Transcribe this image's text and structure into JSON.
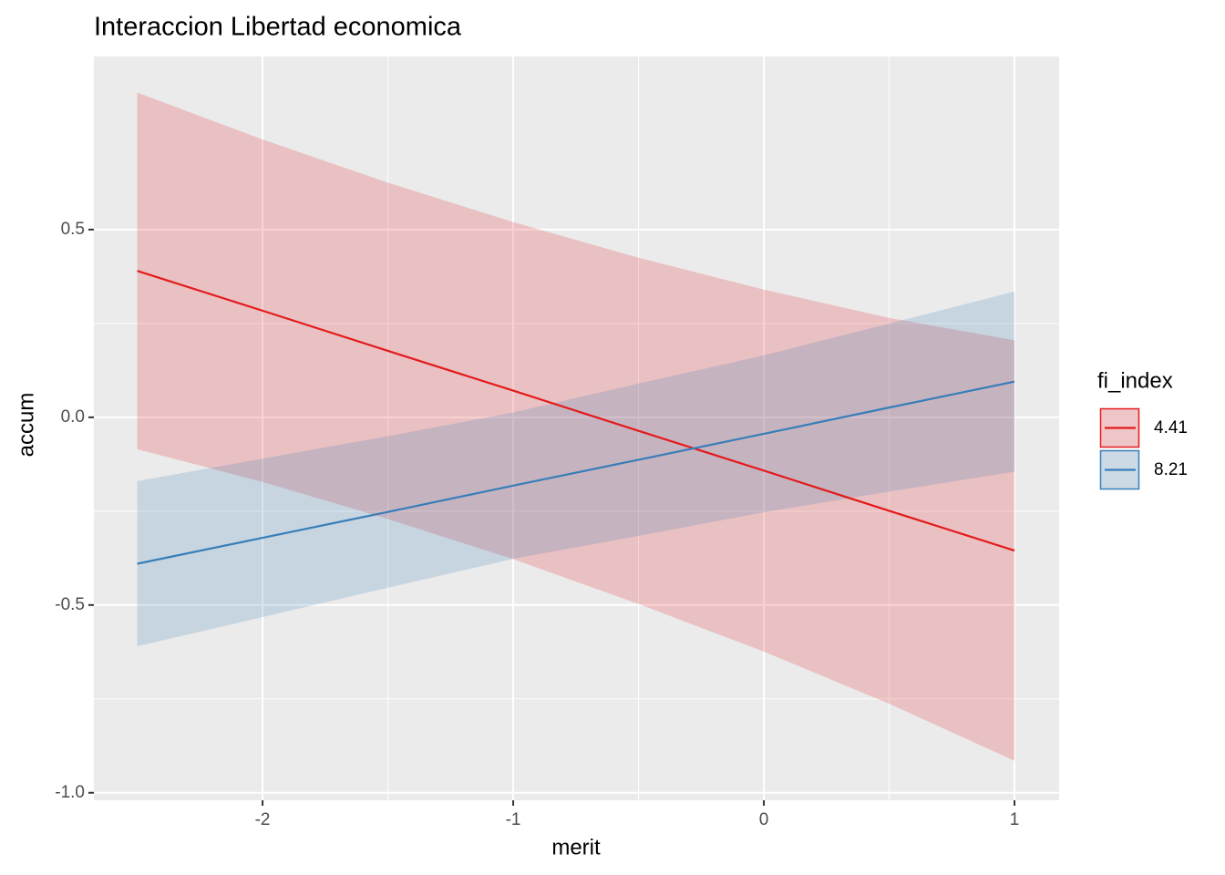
{
  "chart_data": {
    "type": "line",
    "title": "Interaccion Libertad economica",
    "x_label": "merit",
    "y_label": "accum",
    "legend_title": "fi_index",
    "legend": "right",
    "grid": true,
    "x": [
      -2.5,
      -2,
      -1.5,
      -1,
      -0.5,
      0,
      0.5,
      1
    ],
    "series": [
      {
        "name": "4.41",
        "color": "#e41a1c",
        "values": [
          0.39,
          0.284,
          0.177,
          0.071,
          -0.036,
          -0.142,
          -0.249,
          -0.355
        ],
        "upper": [
          0.865,
          0.74,
          0.625,
          0.52,
          0.425,
          0.34,
          0.265,
          0.205
        ],
        "lower": [
          -0.085,
          -0.172,
          -0.271,
          -0.378,
          -0.497,
          -0.624,
          -0.763,
          -0.915
        ]
      },
      {
        "name": "8.21",
        "color": "#377eb8",
        "values": [
          -0.39,
          -0.321,
          -0.252,
          -0.182,
          -0.113,
          -0.044,
          0.026,
          0.095
        ],
        "upper": [
          -0.17,
          -0.11,
          -0.05,
          0.013,
          0.09,
          0.165,
          0.25,
          0.335
        ],
        "lower": [
          -0.61,
          -0.532,
          -0.454,
          -0.377,
          -0.316,
          -0.253,
          -0.198,
          -0.145
        ]
      }
    ],
    "xlim": [
      -2.673,
      1.178
    ],
    "xticks": [
      -2,
      -1,
      0,
      1
    ],
    "ylim": [
      -1.02,
      0.961
    ],
    "yticks": [
      {
        "value": -1,
        "label": "-1.0"
      },
      {
        "value": -0.5,
        "label": "-0.5"
      },
      {
        "value": 0,
        "label": "0.0"
      },
      {
        "value": 0.5,
        "label": "0.5"
      }
    ]
  }
}
